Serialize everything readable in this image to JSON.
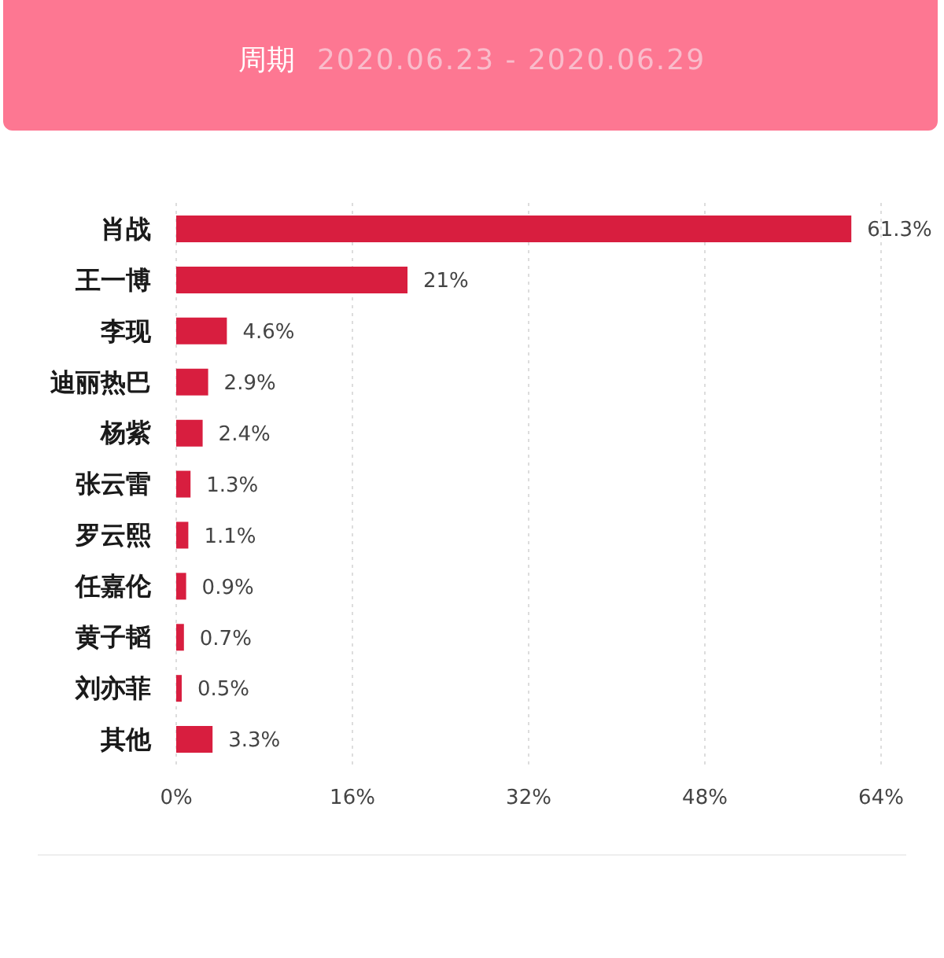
{
  "chart_data": {
    "type": "bar",
    "orientation": "horizontal",
    "title": "周期",
    "subtitle": "2020.06.23 - 2020.06.29",
    "categories": [
      "肖战",
      "王一博",
      "李现",
      "迪丽热巴",
      "杨紫",
      "张云雷",
      "罗云熙",
      "任嘉伦",
      "黄子韬",
      "刘亦菲",
      "其他"
    ],
    "values": [
      61.3,
      21,
      4.6,
      2.9,
      2.4,
      1.3,
      1.1,
      0.9,
      0.7,
      0.5,
      3.3
    ],
    "value_labels": [
      "61.3%",
      "21%",
      "4.6%",
      "2.9%",
      "2.4%",
      "1.3%",
      "1.1%",
      "0.9%",
      "0.7%",
      "0.5%",
      "3.3%"
    ],
    "color": "#d81e3f",
    "xlim": [
      0,
      64
    ],
    "xticks": [
      {
        "value": 0,
        "label": "0%"
      },
      {
        "value": 16,
        "label": "16%"
      },
      {
        "value": 32,
        "label": "32%"
      },
      {
        "value": 48,
        "label": "48%"
      },
      {
        "value": 64,
        "label": "64%"
      }
    ],
    "grid": "x"
  }
}
